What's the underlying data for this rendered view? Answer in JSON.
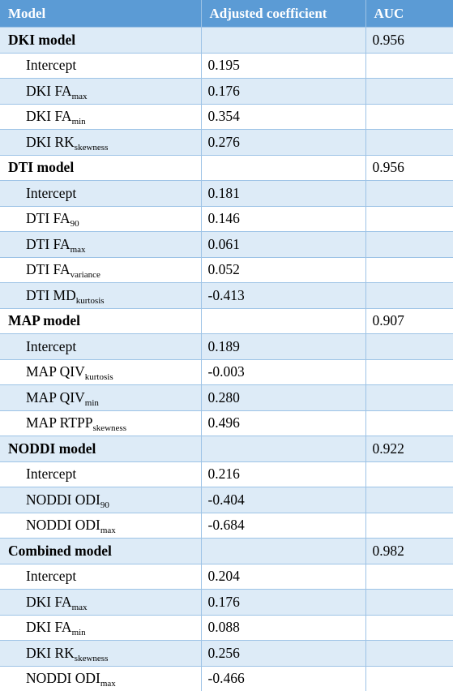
{
  "headers": [
    "Model",
    "Adjusted coefficient",
    "AUC"
  ],
  "rows": [
    {
      "type": "model",
      "name": "DKI model",
      "coef": "",
      "auc": "0.956"
    },
    {
      "type": "term",
      "base": "Intercept",
      "sub": "",
      "coef": "0.195",
      "auc": ""
    },
    {
      "type": "term",
      "base": "DKI FA",
      "sub": "max",
      "coef": "0.176",
      "auc": ""
    },
    {
      "type": "term",
      "base": "DKI FA",
      "sub": "min",
      "coef": "0.354",
      "auc": ""
    },
    {
      "type": "term",
      "base": "DKI RK",
      "sub": "skewness",
      "coef": "0.276",
      "auc": ""
    },
    {
      "type": "model",
      "name": "DTI model",
      "coef": "",
      "auc": "0.956"
    },
    {
      "type": "term",
      "base": "Intercept",
      "sub": "",
      "coef": "0.181",
      "auc": ""
    },
    {
      "type": "term",
      "base": "DTI FA",
      "sub": "90",
      "coef": "0.146",
      "auc": ""
    },
    {
      "type": "term",
      "base": "DTI FA",
      "sub": "max",
      "coef": "0.061",
      "auc": ""
    },
    {
      "type": "term",
      "base": "DTI FA",
      "sub": "variance",
      "coef": "0.052",
      "auc": ""
    },
    {
      "type": "term",
      "base": "DTI MD",
      "sub": "kurtosis",
      "coef": "-0.413",
      "auc": ""
    },
    {
      "type": "model",
      "name": "MAP model",
      "coef": "",
      "auc": "0.907"
    },
    {
      "type": "term",
      "base": "Intercept",
      "sub": "",
      "coef": "0.189",
      "auc": ""
    },
    {
      "type": "term",
      "base": "MAP QIV",
      "sub": "kurtosis",
      "coef": "-0.003",
      "auc": ""
    },
    {
      "type": "term",
      "base": "MAP QIV",
      "sub": "min",
      "coef": "0.280",
      "auc": ""
    },
    {
      "type": "term",
      "base": "MAP RTPP",
      "sub": "skewness",
      "coef": "0.496",
      "auc": ""
    },
    {
      "type": "model",
      "name": "NODDI model",
      "coef": "",
      "auc": "0.922"
    },
    {
      "type": "term",
      "base": "Intercept",
      "sub": "",
      "coef": "0.216",
      "auc": ""
    },
    {
      "type": "term",
      "base": "NODDI ODI",
      "sub": "90",
      "coef": "-0.404",
      "auc": ""
    },
    {
      "type": "term",
      "base": "NODDI ODI",
      "sub": "max",
      "coef": "-0.684",
      "auc": ""
    },
    {
      "type": "model",
      "name": "Combined model",
      "coef": "",
      "auc": "0.982"
    },
    {
      "type": "term",
      "base": "Intercept",
      "sub": "",
      "coef": "0.204",
      "auc": ""
    },
    {
      "type": "term",
      "base": "DKI FA",
      "sub": "max",
      "coef": "0.176",
      "auc": ""
    },
    {
      "type": "term",
      "base": "DKI FA",
      "sub": "min",
      "coef": "0.088",
      "auc": ""
    },
    {
      "type": "term",
      "base": "DKI RK",
      "sub": "skewness",
      "coef": "0.256",
      "auc": ""
    },
    {
      "type": "term",
      "base": "NODDI ODI",
      "sub": "max",
      "coef": "-0.466",
      "auc": ""
    }
  ]
}
